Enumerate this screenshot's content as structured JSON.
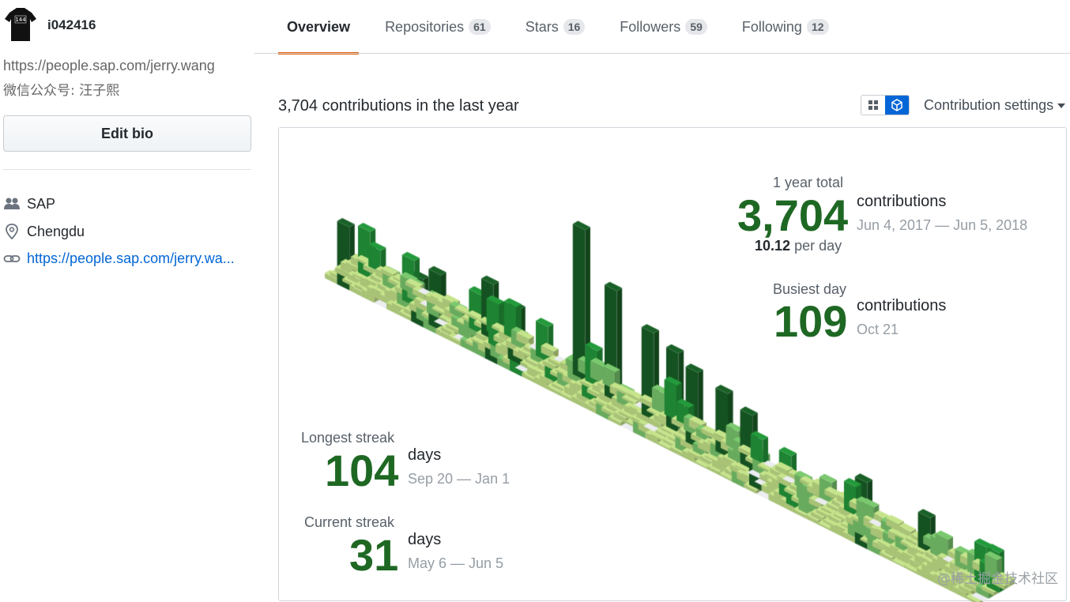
{
  "profile": {
    "username": "i042416",
    "url": "https://people.sap.com/jerry.wang",
    "wechat": "微信公众号: 汪子熙",
    "edit_bio_label": "Edit bio",
    "company": "SAP",
    "location": "Chengdu",
    "website": "https://people.sap.com/jerry.wa..."
  },
  "tabs": [
    {
      "label": "Overview"
    },
    {
      "label": "Repositories",
      "count": "61"
    },
    {
      "label": "Stars",
      "count": "16"
    },
    {
      "label": "Followers",
      "count": "59"
    },
    {
      "label": "Following",
      "count": "12"
    }
  ],
  "contributions": {
    "title": "3,704 contributions in the last year",
    "settings_label": "Contribution settings",
    "year_total_label": "1 year total",
    "year_total_value": "3,704",
    "year_total_unit": "contributions",
    "year_total_range": "Jun 4, 2017 — Jun 5, 2018",
    "per_day_value": "10.12",
    "per_day_label": "per day",
    "busiest_label": "Busiest day",
    "busiest_value": "109",
    "busiest_unit": "contributions",
    "busiest_date": "Oct 21",
    "longest_label": "Longest streak",
    "longest_value": "104",
    "longest_unit": "days",
    "longest_range": "Sep 20 — Jan 1",
    "current_label": "Current streak",
    "current_value": "31",
    "current_unit": "days",
    "current_range": "May 6 — Jun 5"
  },
  "colors": {
    "accent": "#e36209",
    "link": "#0366d6",
    "level0": "#ebedf0",
    "level1": "#c6e48b",
    "level2": "#7bc96f",
    "level3": "#239a3b",
    "level4": "#196127"
  },
  "watermark": "@稀土掘金技术社区"
}
